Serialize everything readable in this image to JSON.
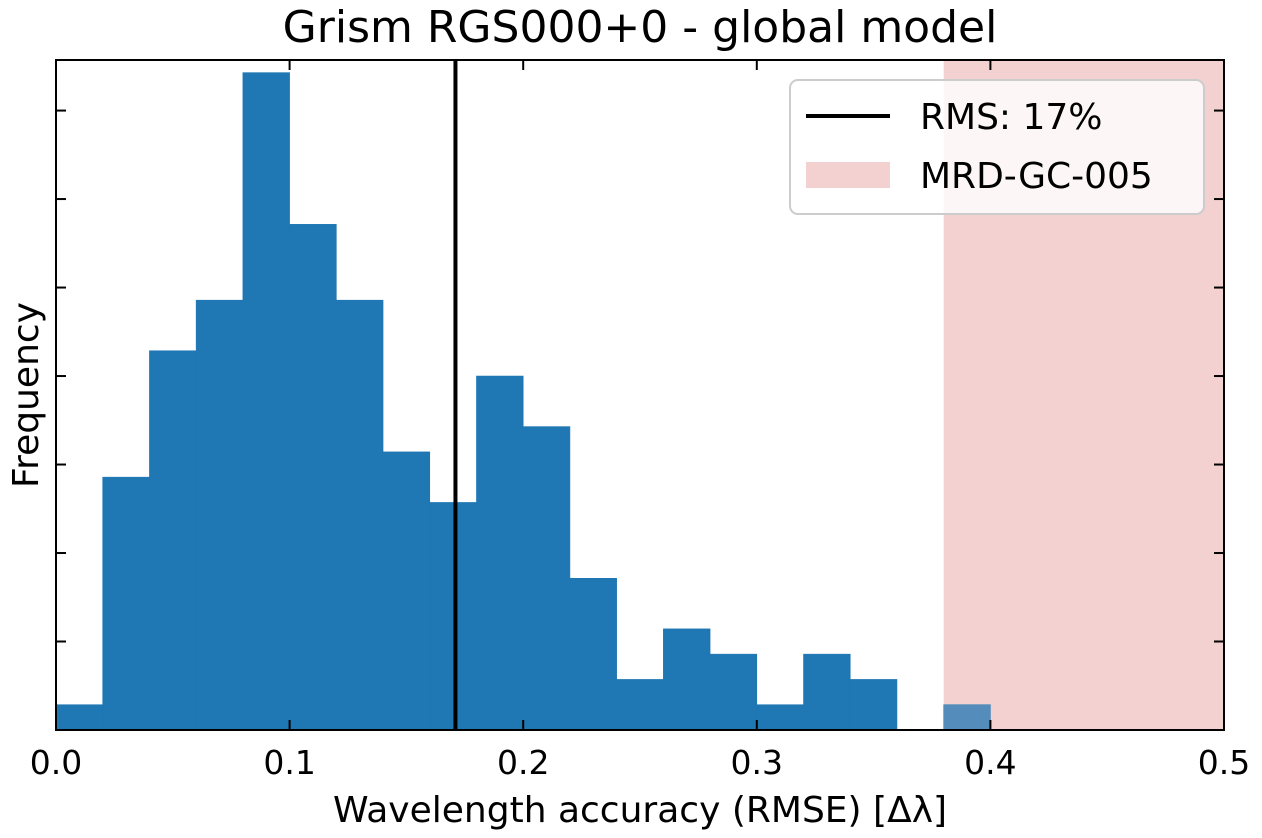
{
  "chart_data": {
    "type": "bar",
    "title": "Grism RGS000+0 - global model",
    "xlabel": "Wavelength accuracy (RMSE) [Δλ]",
    "ylabel": "Frequency",
    "xlim": [
      0.0,
      0.5
    ],
    "ylim": [
      0,
      26.5
    ],
    "x_ticks": [
      0.0,
      0.1,
      0.2,
      0.3,
      0.4,
      0.5
    ],
    "x_tick_labels": [
      "0.0",
      "0.1",
      "0.2",
      "0.3",
      "0.4",
      "0.5"
    ],
    "y_tick_values": [
      3.5,
      7,
      10.5,
      14,
      17.5,
      21,
      24.5
    ],
    "y_tick_labels_shown": false,
    "grid": false,
    "legend_position": "top-right",
    "bins": {
      "edges": [
        0.0,
        0.02,
        0.04,
        0.06,
        0.08,
        0.1,
        0.12,
        0.14,
        0.16,
        0.18,
        0.2,
        0.22,
        0.24,
        0.26,
        0.28,
        0.3,
        0.32,
        0.34,
        0.36,
        0.38,
        0.4
      ],
      "counts": [
        1,
        10,
        15,
        17,
        26,
        20,
        17,
        11,
        9,
        14,
        12,
        6,
        2,
        4,
        3,
        1,
        3,
        2,
        0,
        1
      ],
      "color": "#1f77b4"
    },
    "rms_line": {
      "x": 0.171,
      "label": "RMS: 17%",
      "color": "#000000"
    },
    "requirement_band": {
      "xmin": 0.38,
      "xmax": 0.5,
      "label": "MRD-GC-005",
      "color": "#f4d1d1"
    }
  }
}
